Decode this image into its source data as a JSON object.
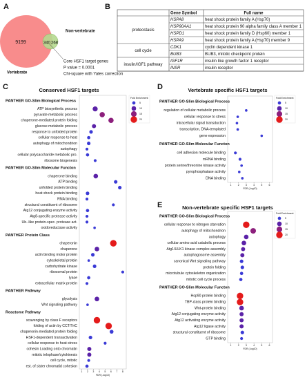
{
  "panel_labels": [
    "A",
    "B",
    "C",
    "D",
    "E"
  ],
  "venn": {
    "vertebrate_only": 9199,
    "shared": 340,
    "non_vertebrate_only": 268,
    "vertebrate_label": "Vertebrate",
    "non_vertebrate_label": "Non-vertebrate",
    "caption": [
      "Core HSF1 target genes",
      "P value = 0.0001",
      "Chi-square with Yates correction"
    ]
  },
  "table": {
    "header": [
      "Gene Symbol",
      "Full name"
    ],
    "groups": [
      {
        "name": "proteostasis",
        "rows": [
          [
            "HSPA8",
            "heat shock protein family A (Hsp70)"
          ],
          [
            "HSP90AA1",
            "heat shock protein 90 alpha family class A member 1"
          ],
          [
            "HSPD1",
            "heat shock protein family D (Hsp60) member 1"
          ],
          [
            "HSPA9",
            "heat shock protein family A (Hsp70) member 9"
          ]
        ]
      },
      {
        "name": "cell cycle",
        "rows": [
          [
            "CDK1",
            "cyclin dependent kinase 1"
          ],
          [
            "BUB3",
            "BUB3, mitotic checkpoint protein"
          ]
        ]
      },
      {
        "name": "insulin/IGF1 pathway",
        "rows": [
          [
            "IGF1R",
            "insulin like growth factor 1 receptor"
          ],
          [
            "INSR",
            "insulin receptor"
          ]
        ]
      }
    ]
  },
  "chart_data": [
    {
      "type": "dot",
      "title": "Conserved HSF1 targets",
      "xlabel": "FDR (-log10)",
      "xlim": [
        0.6,
        8.6
      ],
      "xticks": [
        1,
        2,
        3,
        4,
        5,
        6,
        7,
        8
      ],
      "legend_title": "Fold Enrichment",
      "legend_sizes": [
        5,
        10,
        15,
        20
      ],
      "legend_colors": [
        "#3a3ad6",
        "#5b22a8",
        "#8c1f7c",
        "#e41b1b"
      ],
      "sections": [
        {
          "name": "PANTHER GO-Slim Biological Process",
          "categories": [
            "ATP biosynthetic process",
            "pyruvate metabolic process",
            "chaperone-mediated protein folding",
            "glucose metabolic process",
            "response to unfolded protein",
            "cellular response to heat",
            "autophagy of mitochondrion",
            "autophagy",
            "cellular polysaccharide metabolic pro.",
            "ribosome biogenesis"
          ],
          "values": [
            3.3,
            4.5,
            6,
            3.1,
            2.6,
            2.2,
            2.2,
            1.9,
            2,
            3.3
          ],
          "sizes": [
            12,
            13,
            13,
            8,
            6,
            5,
            6,
            4,
            5,
            4
          ]
        },
        {
          "name": "PANTHER GO-Slim Molecular Functon",
          "categories": [
            "chaperone binding",
            "ATP binding",
            "unfolded protein binding",
            "heat shock protein binding",
            "RNA binding",
            "structural constituent of ribosome",
            "Atg12 conjugating enzyme activity",
            "Atg8-specific protease activity",
            "Ub.-like protein-spec. protease act.",
            "oxidoreductase activity"
          ],
          "values": [
            3.4,
            6.8,
            7.5,
            2,
            1.9,
            6.4,
            2,
            1.9,
            1.9,
            3.2
          ],
          "sizes": [
            10,
            6,
            6,
            6,
            4,
            4,
            5,
            4,
            4,
            3
          ]
        },
        {
          "name": "PANTHER Protein Class",
          "categories": [
            "chaperonin",
            "chaperone",
            "actin binding motor protein",
            "cytoskeletal protein",
            "carbohydrate kinase",
            "ribosomal protein",
            "lyase",
            "extracellular matrix protein"
          ],
          "values": [
            6.4,
            3.6,
            2.9,
            2.2,
            3.2,
            8,
            2.2,
            1.9
          ],
          "sizes": [
            20,
            10,
            6,
            3,
            6,
            4,
            5,
            4
          ]
        },
        {
          "name": "PANTHER Pathway",
          "categories": [
            "glycolysis",
            "Wnt signaling pathway"
          ],
          "values": [
            3.6,
            2
          ],
          "sizes": [
            10,
            3
          ]
        },
        {
          "name": "Reactome Pathway",
          "categories": [
            "scavenging by class F receptors",
            "folding of actin by CCT/TriC",
            "chaperonin-mediated protein folding",
            "HSF1-dependent transactivation",
            "cellular response to heat stress",
            "cohesin Loading onto chromatin",
            "mitotic telophase/cytokinesis",
            "cell cycle, mitotic",
            "est. of sister chromatid cohesion"
          ],
          "values": [
            3.6,
            5.6,
            6.1,
            2.5,
            5,
            2.3,
            2.3,
            2.2,
            1.9
          ],
          "sizes": [
            20,
            20,
            7,
            6,
            4,
            8,
            8,
            4,
            5
          ]
        }
      ]
    },
    {
      "type": "dot",
      "title": "Vertebrate specific HSF1 targets",
      "xlabel": "FDR (-log10)",
      "xlim": [
        0.6,
        6.4
      ],
      "xticks": [
        1,
        2,
        3,
        4,
        5,
        6
      ],
      "legend_title": "Fold Enrichment",
      "legend_sizes": [
        5,
        10,
        15,
        20
      ],
      "legend_colors": [
        "#3a3ad6",
        "#5b22a8",
        "#8c1f7c",
        "#e41b1b"
      ],
      "sections": [
        {
          "name": "PANTHER GO-Slim Biological Process",
          "categories": [
            "regulation of cellular metabolic process",
            "cellular response to stress",
            "intracellular signal transduction",
            "transcription, DNA-templated",
            "gene expression"
          ],
          "values": [
            3,
            1.9,
            1.8,
            1.9,
            5
          ],
          "sizes": [
            3,
            3,
            3,
            3,
            3
          ]
        },
        {
          "name": "PANTHER GO-Slim Molecular Functon",
          "categories": [
            "cell adhesion molecule binding",
            "mRNA binding",
            "protein serine/threonine kinase activity",
            "pyrophosphatase activity",
            "DNA binding"
          ],
          "values": [
            1.6,
            2.2,
            2.4,
            2.1,
            2.5
          ],
          "sizes": [
            4,
            4,
            3,
            3,
            3
          ]
        }
      ]
    },
    {
      "type": "dot",
      "title": "Non-vertebrate specific HSF1 targets",
      "xlabel": "FDR (-log10)",
      "xlim": [
        0.6,
        6.4
      ],
      "xticks": [
        1,
        2,
        3,
        4,
        5,
        6
      ],
      "legend_title": "Fold Enrichment",
      "legend_sizes": [
        5,
        10,
        15,
        20
      ],
      "legend_colors": [
        "#3a3ad6",
        "#5b22a8",
        "#8c1f7c",
        "#e41b1b"
      ],
      "sections": [
        {
          "name": "PANTHER GO-Slim Biological Process",
          "categories": [
            "cellular response to nitrogen starvation",
            "autophagy of mitochondrion",
            "autophagy",
            "cellular amino acid catabolic process",
            "Atg1/ULK1 kinase complex assembly",
            "autophagosome assembly",
            "canonical Wnt signaling pathway",
            "protein folding",
            "microtubule cytoskeleton organization",
            "mitotic cell cycle process"
          ],
          "values": [
            3,
            3.9,
            3,
            2.7,
            2.6,
            2.5,
            2.4,
            2.5,
            2.4,
            2.3
          ],
          "sizes": [
            20,
            15,
            10,
            10,
            8,
            8,
            6,
            6,
            5,
            5
          ]
        },
        {
          "name": "PANTHER GO-Slim Molecular Functon",
          "categories": [
            "Hsp90 protein binding",
            "TBP-class protein binding",
            "Wnt-protein binding",
            "Atg12 conjugating enzyme activity",
            "Atg12 activating enzyme activity",
            "Atg12 ligase activity",
            "structural constituent of ribosome",
            "GTP binding"
          ],
          "values": [
            2.2,
            2.2,
            2.4,
            2.4,
            2.4,
            2.4,
            2.5,
            2.4
          ],
          "sizes": [
            20,
            20,
            10,
            8,
            8,
            8,
            6,
            4
          ]
        }
      ]
    }
  ]
}
